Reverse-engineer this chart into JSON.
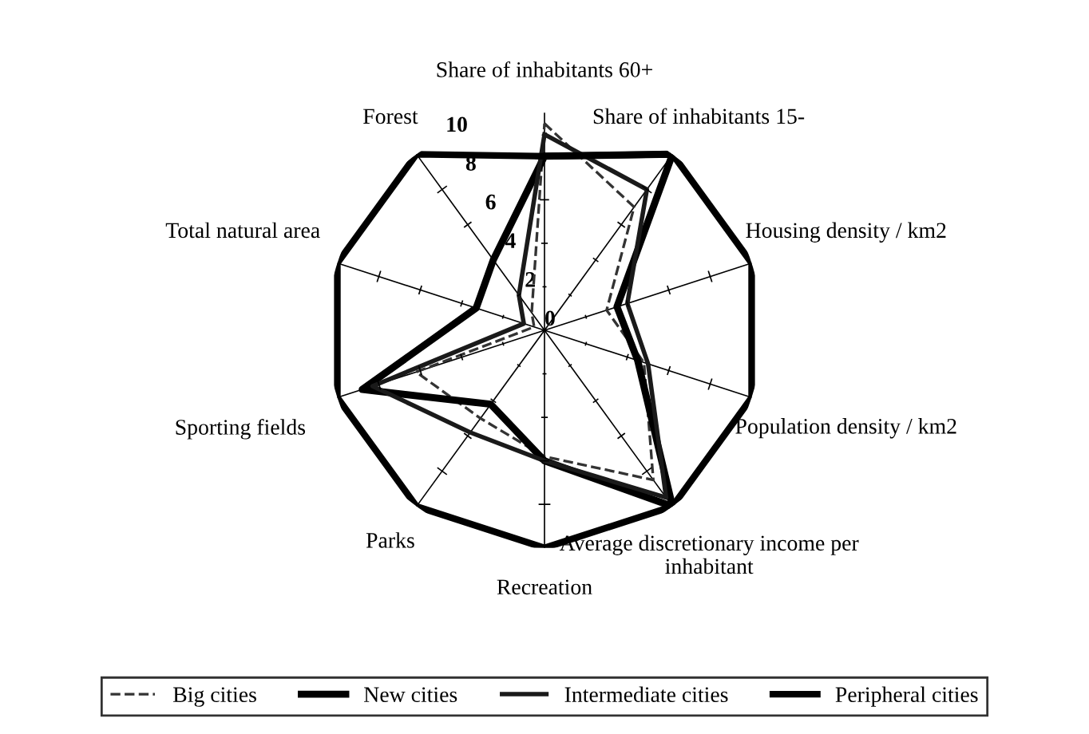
{
  "chart_data": {
    "type": "radar",
    "categories": [
      "Share of inhabitants 60+",
      "Share of inhabitants 15-",
      "Housing density / km2",
      "Population density / km2",
      "Average discretionary income per inhabitant",
      "Recreation",
      "Parks",
      "Sporting fields",
      "Total natural area",
      "Forest"
    ],
    "series": [
      {
        "name": "Big cities",
        "color": "#333333",
        "line_style": "dashed",
        "values": [
          9.5,
          7,
          3,
          4.8,
          8.5,
          5.8,
          5,
          6.2,
          0.5,
          1
        ]
      },
      {
        "name": "New cities",
        "color": "#000000",
        "values": [
          8,
          10,
          3.5,
          4.5,
          10,
          6,
          4.2,
          8.8,
          3.3,
          4
        ]
      },
      {
        "name": "Intermediate cities",
        "color": "#1a1a1a",
        "values": [
          9,
          8,
          4,
          5,
          9.5,
          6,
          5.8,
          8.3,
          1,
          2
        ]
      },
      {
        "name": "Peripheral cities",
        "color": "#000000",
        "values": [
          8,
          10,
          10,
          10,
          10,
          10,
          10,
          10,
          10,
          10
        ]
      }
    ],
    "ylim": [
      0,
      10
    ],
    "yticks": [
      0,
      2,
      4,
      6,
      8,
      10
    ],
    "grid": "x",
    "legend": "bottom",
    "marker": "none"
  }
}
